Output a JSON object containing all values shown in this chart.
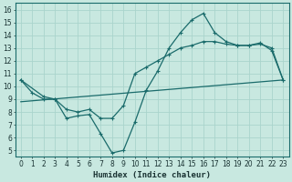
{
  "xlabel": "Humidex (Indice chaleur)",
  "xlim": [
    -0.5,
    23.5
  ],
  "ylim": [
    4.5,
    16.5
  ],
  "xticks": [
    0,
    1,
    2,
    3,
    4,
    5,
    6,
    7,
    8,
    9,
    10,
    11,
    12,
    13,
    14,
    15,
    16,
    17,
    18,
    19,
    20,
    21,
    22,
    23
  ],
  "yticks": [
    5,
    6,
    7,
    8,
    9,
    10,
    11,
    12,
    13,
    14,
    15,
    16
  ],
  "bg_color": "#c8e8e0",
  "grid_color": "#aad4cc",
  "line_color": "#1a6b6b",
  "line1_x": [
    0,
    1,
    2,
    3,
    4,
    5,
    6,
    7,
    8,
    9,
    10,
    11,
    12,
    13,
    14,
    15,
    16,
    17,
    18,
    19,
    20,
    21,
    22,
    23
  ],
  "line1_y": [
    10.5,
    9.5,
    9.0,
    9.0,
    7.5,
    7.7,
    7.8,
    6.3,
    4.8,
    5.0,
    7.2,
    9.7,
    11.2,
    13.0,
    14.2,
    15.2,
    15.7,
    14.2,
    13.5,
    13.2,
    13.2,
    13.4,
    12.8,
    10.5
  ],
  "line2_x": [
    0,
    2,
    3,
    4,
    5,
    6,
    7,
    8,
    9,
    10,
    11,
    12,
    13,
    14,
    15,
    16,
    17,
    18,
    19,
    20,
    21,
    22,
    23
  ],
  "line2_y": [
    10.5,
    9.2,
    9.0,
    8.2,
    8.0,
    8.2,
    7.5,
    7.5,
    8.5,
    11.0,
    11.5,
    12.0,
    12.5,
    13.0,
    13.2,
    13.5,
    13.5,
    13.3,
    13.2,
    13.2,
    13.3,
    13.0,
    10.5
  ],
  "line3_x": [
    0,
    23
  ],
  "line3_y": [
    8.8,
    10.5
  ]
}
